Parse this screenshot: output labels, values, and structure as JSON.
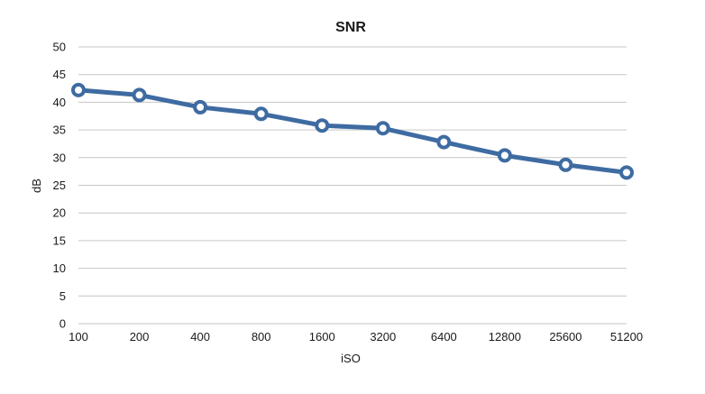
{
  "chart_data": {
    "type": "line",
    "title": "SNR",
    "xlabel": "iSO",
    "ylabel": "dB",
    "categories": [
      "100",
      "200",
      "400",
      "800",
      "1600",
      "3200",
      "6400",
      "12800",
      "25600",
      "51200"
    ],
    "series": [
      {
        "values": [
          42.2,
          41.3,
          39.1,
          37.9,
          35.8,
          35.3,
          32.8,
          30.4,
          28.7,
          27.3
        ]
      }
    ],
    "ylim": [
      0,
      50
    ],
    "yticks": [
      0,
      5,
      10,
      15,
      20,
      25,
      30,
      35,
      40,
      45,
      50
    ],
    "grid": true,
    "colors": {
      "line": "#3e6ba1",
      "marker_fill": "#ffffff",
      "grid": "#c6c6c6",
      "text": "#1a1a1a"
    }
  }
}
